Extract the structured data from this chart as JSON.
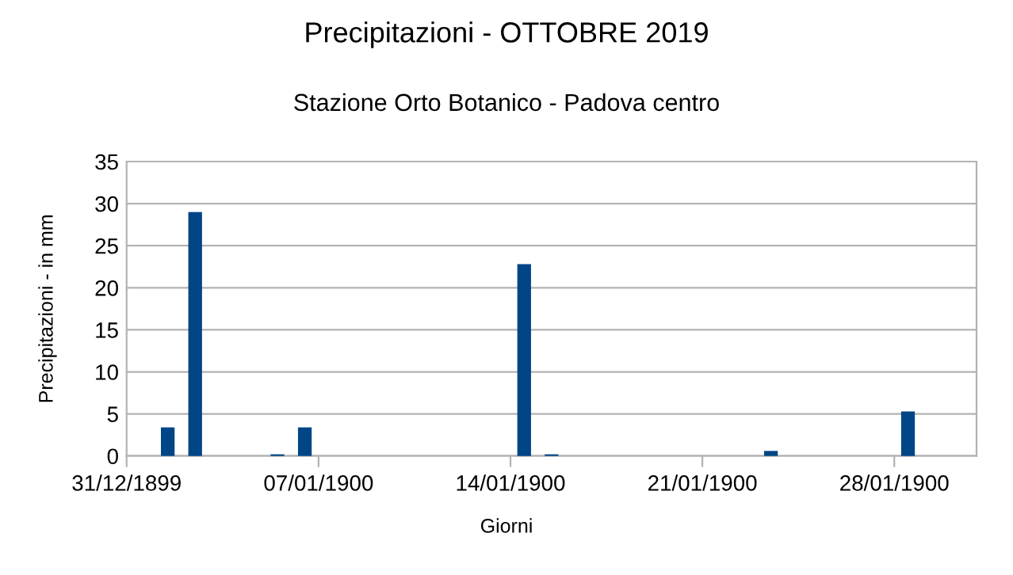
{
  "chart_data": {
    "type": "bar",
    "title": "Precipitazioni - OTTOBRE 2019",
    "subtitle": "Stazione Orto Botanico - Padova centro",
    "xlabel": "Giorni",
    "ylabel": "Precipitazioni - in mm",
    "x": [
      "1900-01-01T12:00",
      "1900-01-02T12:00",
      "1900-01-05T12:00",
      "1900-01-06T12:00",
      "1900-01-14T12:00",
      "1900-01-15T12:00",
      "1900-01-23T12:00",
      "1900-01-28T12:00"
    ],
    "values": [
      3.4,
      29.0,
      0.2,
      3.4,
      22.8,
      0.2,
      0.6,
      5.3
    ],
    "color": "#004586",
    "xlim": [
      "1899-12-31",
      "1900-01-31"
    ],
    "xticks": [
      {
        "value": "1899-12-31",
        "label": "31/12/1899"
      },
      {
        "value": "1900-01-07",
        "label": "07/01/1900"
      },
      {
        "value": "1900-01-14",
        "label": "14/01/1900"
      },
      {
        "value": "1900-01-21",
        "label": "21/01/1900"
      },
      {
        "value": "1900-01-28",
        "label": "28/01/1900"
      }
    ],
    "ylim": [
      0,
      35
    ],
    "yticks": [
      0,
      5,
      10,
      15,
      20,
      25,
      30,
      35
    ],
    "grid": "y",
    "legend": false
  }
}
